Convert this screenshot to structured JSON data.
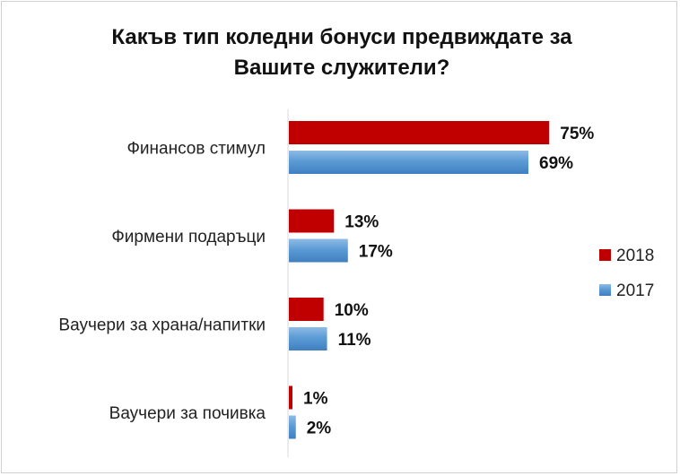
{
  "chart_data": {
    "type": "bar",
    "orientation": "horizontal",
    "title_line1": "Какъв тип коледни бонуси предвиждате за",
    "title_line2": "Вашите служители?",
    "categories": [
      "Финансов стимул",
      "Фирмени подаръци",
      "Ваучери за храна/напитки",
      "Ваучери за почивка"
    ],
    "series": [
      {
        "name": "2018",
        "color": "#c00000",
        "values": [
          75,
          13,
          10,
          1
        ],
        "labels": [
          "75%",
          "13%",
          "10%",
          "1%"
        ]
      },
      {
        "name": "2017",
        "color": "#5b9bd5",
        "values": [
          69,
          17,
          11,
          2
        ],
        "labels": [
          "69%",
          "17%",
          "11%",
          "2%"
        ]
      }
    ],
    "unit": "%",
    "grid": false,
    "legend_position": "right"
  }
}
